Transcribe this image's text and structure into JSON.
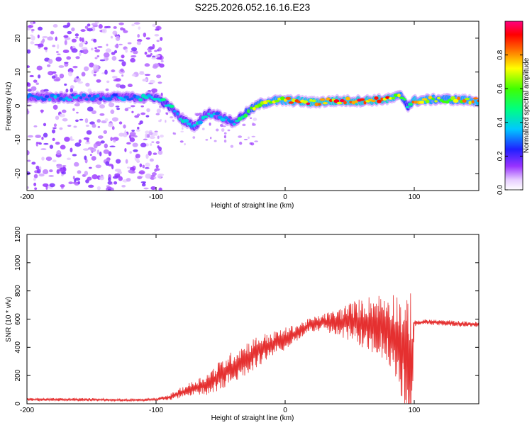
{
  "title": "S225.2026.052.16.16.E23",
  "chart_data": [
    {
      "type": "heatmap",
      "name": "spectrogram",
      "xlabel": "Height of straight line (km)",
      "ylabel": "Frequency (Hz)",
      "xlim": [
        -200,
        150
      ],
      "ylim": [
        -25,
        25
      ],
      "xticks": [
        -200,
        -100,
        0,
        100
      ],
      "yticks": [
        -20,
        -10,
        0,
        10,
        20
      ],
      "colorbar": {
        "label": "Normalized spectral amplitude",
        "range": [
          0,
          1
        ],
        "ticks": [
          0.0,
          0.2,
          0.4,
          0.6,
          0.8
        ]
      },
      "ridge": {
        "x": [
          -200,
          -180,
          -160,
          -140,
          -120,
          -100,
          -90,
          -80,
          -70,
          -60,
          -50,
          -40,
          -30,
          -20,
          -10,
          0,
          10,
          20,
          40,
          60,
          80,
          90,
          95,
          100,
          120,
          150
        ],
        "freq": [
          2.5,
          2.5,
          2.5,
          2.5,
          2.5,
          2.5,
          0,
          -4,
          -6,
          -2,
          -3,
          -5,
          -2,
          0.5,
          1.5,
          1.5,
          1.5,
          1.0,
          1.5,
          1.5,
          2.0,
          3.0,
          0,
          1.5,
          2.0,
          1.5
        ],
        "amplitude": [
          0.3,
          0.35,
          0.35,
          0.3,
          0.35,
          0.45,
          0.45,
          0.4,
          0.4,
          0.4,
          0.35,
          0.35,
          0.6,
          0.7,
          0.75,
          0.8,
          0.85,
          0.9,
          0.9,
          0.9,
          0.9,
          0.7,
          0.5,
          0.85,
          0.7,
          0.8
        ]
      },
      "noise_region_x": [
        -200,
        -95
      ]
    },
    {
      "type": "line",
      "name": "snr",
      "xlabel": "Height of straight line (km)",
      "ylabel": "SNR (10 * v/v)",
      "xlim": [
        -200,
        150
      ],
      "ylim": [
        0,
        1200
      ],
      "xticks": [
        -200,
        -100,
        0,
        100
      ],
      "yticks": [
        0,
        200,
        400,
        600,
        800,
        1000,
        1200
      ],
      "color": "#e53030",
      "envelope": {
        "x": [
          -200,
          -160,
          -120,
          -100,
          -90,
          -80,
          -70,
          -60,
          -50,
          -40,
          -30,
          -20,
          -10,
          0,
          10,
          20,
          30,
          40,
          50,
          60,
          70,
          80,
          85,
          90,
          95,
          98,
          100,
          110,
          130,
          150
        ],
        "base": [
          30,
          30,
          25,
          30,
          45,
          80,
          110,
          140,
          200,
          260,
          320,
          380,
          420,
          460,
          510,
          560,
          580,
          570,
          580,
          570,
          560,
          540,
          500,
          400,
          300,
          200,
          570,
          580,
          570,
          560
        ],
        "spread": [
          10,
          12,
          8,
          10,
          20,
          40,
          60,
          80,
          110,
          120,
          120,
          110,
          90,
          80,
          60,
          50,
          60,
          100,
          140,
          180,
          220,
          250,
          300,
          380,
          480,
          600,
          20,
          20,
          20,
          20
        ]
      }
    }
  ]
}
